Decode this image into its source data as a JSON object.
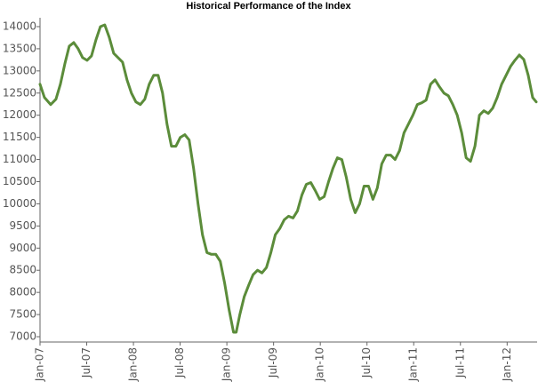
{
  "chart_data": {
    "type": "line",
    "title": "Historical Performance of the Index",
    "x": [
      0,
      0.57,
      1.37,
      2.05,
      2.62,
      3.19,
      3.76,
      4.33,
      4.9,
      5.47,
      6.04,
      6.61,
      7.18,
      7.75,
      8.32,
      8.89,
      9.46,
      10.03,
      10.6,
      11.17,
      11.74,
      12.31,
      12.88,
      13.45,
      14.03,
      14.6,
      15.17,
      15.74,
      16.31,
      16.88,
      17.45,
      18.02,
      18.59,
      19.16,
      19.73,
      20.3,
      20.87,
      21.44,
      22.01,
      22.58,
      23.15,
      23.72,
      24.29,
      24.86,
      25.2,
      25.66,
      26.23,
      26.8,
      27.37,
      27.94,
      28.51,
      29.08,
      29.65,
      30.22,
      30.79,
      31.36,
      31.93,
      32.5,
      33.07,
      33.64,
      34.21,
      34.78,
      35.35,
      35.92,
      36.49,
      37.06,
      37.63,
      38.2,
      38.77,
      39.34,
      39.91,
      40.48,
      41.05,
      41.62,
      42.19,
      42.76,
      43.33,
      43.9,
      44.47,
      45.04,
      45.61,
      46.18,
      46.75,
      47.32,
      47.89,
      48.46,
      49.03,
      49.6,
      50.17,
      50.74,
      51.31,
      51.88,
      52.45,
      53.02,
      53.59,
      54.16,
      54.73,
      55.3,
      55.87,
      56.44,
      57.01,
      57.58,
      58.15,
      58.72,
      59.29,
      59.86,
      60.43,
      61.0,
      61.57,
      62.14,
      62.71,
      63.28,
      63.74
    ],
    "series": [
      {
        "name": "Index",
        "color": "#5b8c3a",
        "values": [
          12700,
          12400,
          12240,
          12360,
          12700,
          13160,
          13560,
          13640,
          13500,
          13300,
          13240,
          13340,
          13700,
          14000,
          14040,
          13760,
          13400,
          13300,
          13200,
          12800,
          12500,
          12300,
          12240,
          12360,
          12700,
          12900,
          12900,
          12500,
          11800,
          11300,
          11300,
          11500,
          11560,
          11440,
          10800,
          10000,
          9300,
          8900,
          8860,
          8860,
          8700,
          8200,
          7600,
          7100,
          7100,
          7500,
          7900,
          8160,
          8400,
          8500,
          8440,
          8560,
          8900,
          9300,
          9440,
          9640,
          9720,
          9680,
          9840,
          10200,
          10440,
          10480,
          10300,
          10100,
          10160,
          10500,
          10800,
          11040,
          11000,
          10600,
          10100,
          9800,
          10000,
          10400,
          10400,
          10100,
          10360,
          10900,
          11100,
          11100,
          11000,
          11200,
          11600,
          11800,
          12000,
          12240,
          12280,
          12340,
          12700,
          12800,
          12640,
          12500,
          12440,
          12240,
          12000,
          11600,
          11040,
          10960,
          11300,
          12000,
          12100,
          12040,
          12160,
          12400,
          12700,
          12900,
          13100,
          13240,
          13360,
          13260,
          12900,
          12400,
          12300
        ]
      }
    ],
    "xlim": [
      0,
      63.85
    ],
    "xticks": [
      {
        "value": 0,
        "label": "Jan-07"
      },
      {
        "value": 6,
        "label": "Jul-07"
      },
      {
        "value": 12,
        "label": "Jan-08"
      },
      {
        "value": 18,
        "label": "Jul-08"
      },
      {
        "value": 24,
        "label": "Jan-09"
      },
      {
        "value": 30,
        "label": "Jul-09"
      },
      {
        "value": 36,
        "label": "Jan-10"
      },
      {
        "value": 42,
        "label": "Jul-10"
      },
      {
        "value": 48,
        "label": "Jan-11"
      },
      {
        "value": 54,
        "label": "Jul-11"
      },
      {
        "value": 60,
        "label": "Jan-12"
      }
    ],
    "ylim": [
      6880,
      14200
    ],
    "yticks": [
      7000,
      7500,
      8000,
      8500,
      9000,
      9500,
      10000,
      10500,
      11000,
      11500,
      12000,
      12500,
      13000,
      13500,
      14000
    ],
    "grid": false
  }
}
